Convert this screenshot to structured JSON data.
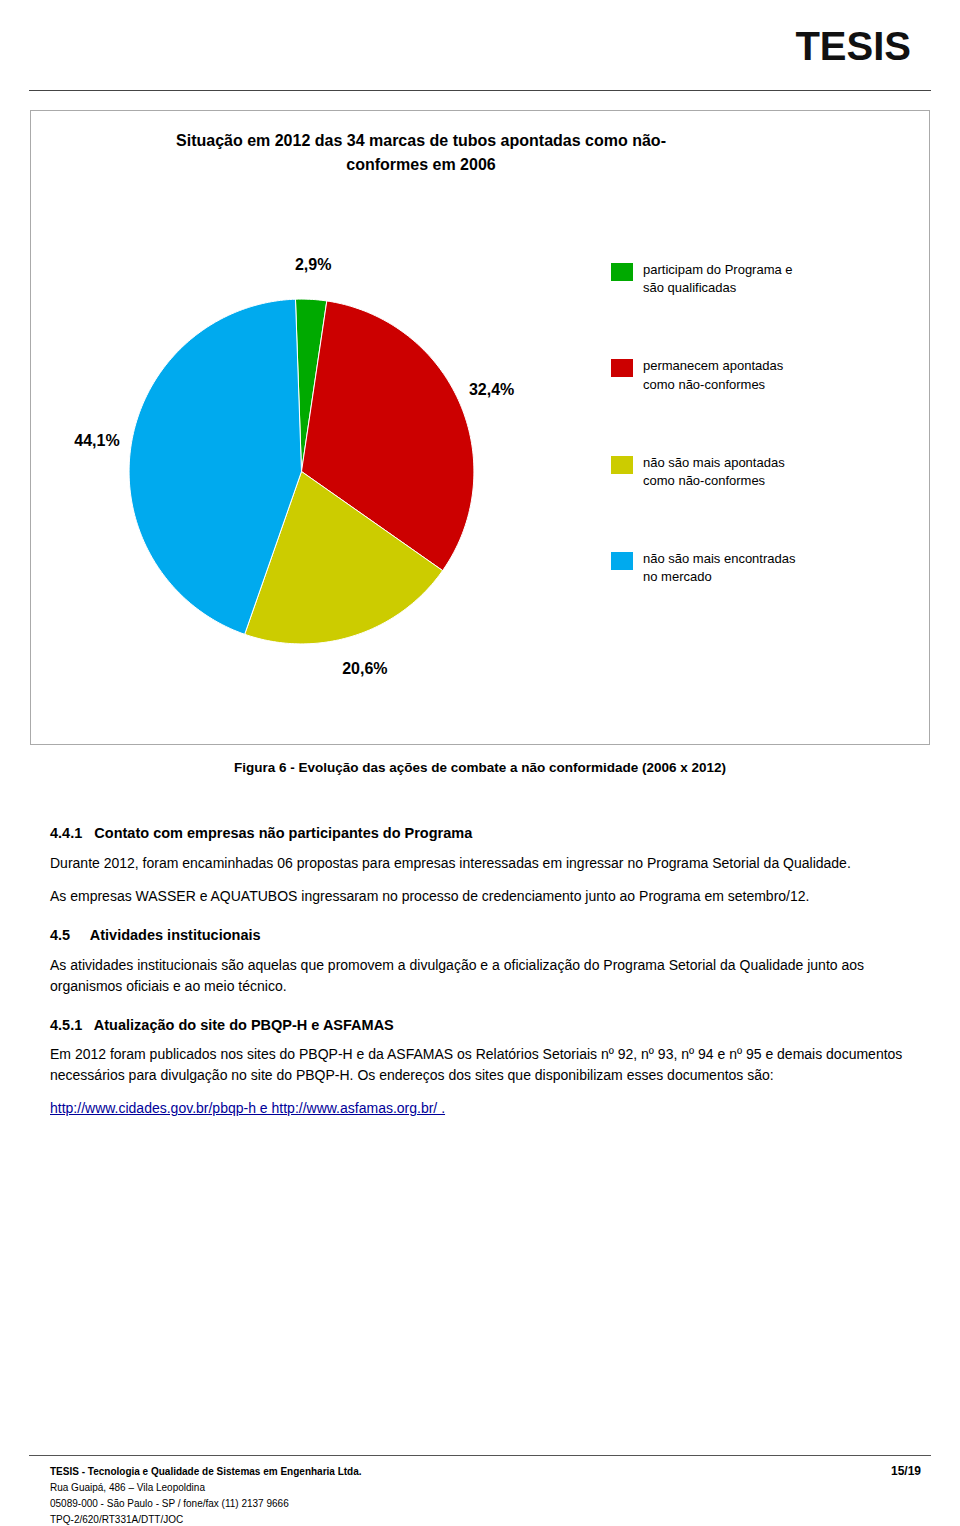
{
  "chart_data": {
    "type": "pie",
    "title": "Situação em 2012 das 34 marcas de tubos apontadas como não-\nconformes em 2006",
    "categories": [
      "participam do Programa e\nsão qualificadas",
      "permanecem apontadas\ncomo não-conformes",
      "não são mais apontadas\ncomo não-conformes",
      "não são mais encontradas\nno mercado"
    ],
    "values": [
      2.9,
      32.4,
      20.6,
      44.1
    ],
    "value_labels": [
      "2,9%",
      "32,4%",
      "20,6%",
      "44,1%"
    ],
    "colors": [
      "#00aa00",
      "#cc0000",
      "#cccc00",
      "#00aaee"
    ],
    "data_labels": true,
    "legend": "right",
    "annotations": [
      "TESIS",
      "Figura 6 - Evolução das ações de combate a não conformidade (2006 x 2012)",
      "4.4.1   Contato com empresas não participantes do Programa",
      "Durante 2012, foram encaminhadas 06 propostas para empresas interessadas em ingressar no Programa Setorial da Qualidade.",
      "As empresas WASSER e AQUATUBOS ingressaram no processo de credenciamento junto ao Programa em setembro/12.",
      "4.5     Atividades institucionais",
      "As atividades institucionais são aquelas que promovem a divulgação e a oficialização do Programa Setorial da Qualidade junto aos organismos oficiais e ao meio técnico.",
      "4.5.1   Atualização do site do PBQP-H e ASFAMAS",
      "Em 2012 foram publicados nos sites do PBQP-H e da ASFAMAS os Relatórios Setoriais nº 92, nº 93, nº 94 e nº 95 e demais documentos necessários para divulgação no site do PBQP-H. Os endereços dos sites que disponibilizam esses documentos são:",
      "http://www.cidades.gov.br/pbqp-h e http://www.asfamas.org.br/ .",
      "TESIS - Tecnologia e Qualidade de Sistemas em Engenharia Ltda.",
      "Rua Guaipá, 486 – Vila Leopoldina",
      "05089-000 - São Paulo - SP / fone/fax (11) 2137 9666",
      "TPQ-2/620/RT331A/DTT/JOC",
      "15/19"
    ]
  }
}
